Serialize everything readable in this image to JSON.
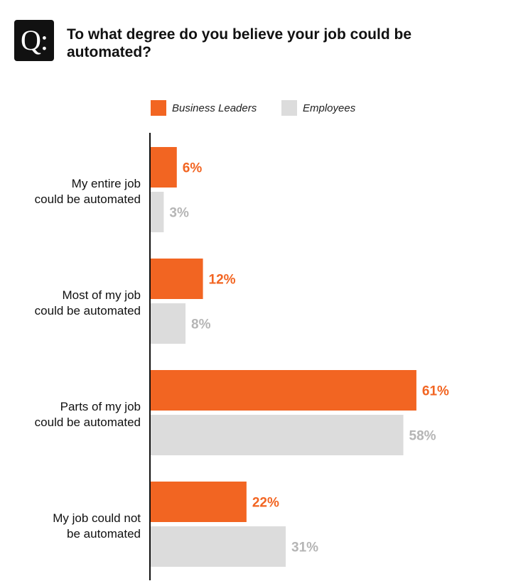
{
  "header": {
    "badge": "Q:",
    "title": "To what degree do you believe your job could be automated?"
  },
  "legend": [
    {
      "label": "Business Leaders",
      "color": "#f26522"
    },
    {
      "label": "Employees",
      "color": "#dcdcdc"
    }
  ],
  "colors": {
    "leaders_bar": "#f26522",
    "employees_bar": "#dcdcdc",
    "employees_label": "#b5b5b5",
    "axis": "#111111"
  },
  "chart_data": {
    "type": "bar",
    "orientation": "horizontal",
    "title": "To what degree do you believe your job could be automated?",
    "categories": [
      [
        "My entire job",
        "could be automated"
      ],
      [
        "Most of my job",
        "could be automated"
      ],
      [
        "Parts of my job",
        "could be automated"
      ],
      [
        "My job could not",
        "be automated"
      ]
    ],
    "series": [
      {
        "name": "Business Leaders",
        "values": [
          6,
          12,
          61,
          22
        ],
        "labels": [
          "6%",
          "12%",
          "61%",
          "22%"
        ]
      },
      {
        "name": "Employees",
        "values": [
          3,
          8,
          58,
          31
        ],
        "labels": [
          "3%",
          "8%",
          "58%",
          "31%"
        ]
      }
    ],
    "xlim": [
      0,
      100
    ],
    "unit": "%",
    "legend_position": "top"
  }
}
